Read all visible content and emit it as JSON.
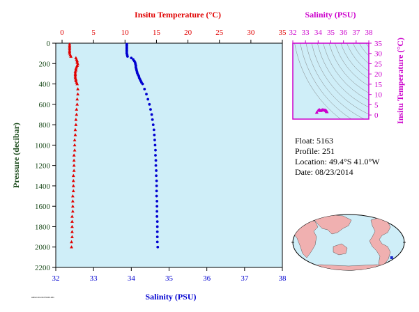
{
  "colors": {
    "temperature": "#e00000",
    "salinity": "#0000d0",
    "pressure": "#1a4a1a",
    "ts_diagram": "#cc00cc",
    "plot_background": "#cfeef8",
    "land": "#f0b0b0",
    "ocean": "#cfeef8"
  },
  "chart_data": [
    {
      "type": "scatter",
      "title": "",
      "x_axis_top": {
        "label": "Insitu Temperature (°C)",
        "range": [
          -1,
          35
        ],
        "ticks": [
          "0",
          "5",
          "10",
          "15",
          "20",
          "25",
          "30",
          "35"
        ]
      },
      "x_axis_bottom": {
        "label": "Salinity (PSU)",
        "range": [
          32,
          38
        ],
        "ticks": [
          "32",
          "33",
          "34",
          "35",
          "36",
          "37",
          "38"
        ]
      },
      "y_axis": {
        "label": "Pressure (decibar)",
        "range": [
          0,
          2200
        ],
        "inverted": true,
        "ticks": [
          "0",
          "200",
          "400",
          "600",
          "800",
          "1000",
          "1200",
          "1400",
          "1600",
          "1800",
          "2000",
          "2200"
        ]
      },
      "grid": false,
      "series": [
        {
          "name": "Insitu Temperature (°C)",
          "axis": "top",
          "marker": "triangle",
          "color": "#e00000",
          "points": [
            [
              1.2,
              10
            ],
            [
              1.2,
              25
            ],
            [
              1.2,
              40
            ],
            [
              1.2,
              55
            ],
            [
              1.2,
              70
            ],
            [
              1.2,
              85
            ],
            [
              1.2,
              100
            ],
            [
              1.3,
              115
            ],
            [
              1.4,
              130
            ],
            [
              2.2,
              145
            ],
            [
              2.3,
              160
            ],
            [
              2.4,
              175
            ],
            [
              2.4,
              190
            ],
            [
              2.5,
              205
            ],
            [
              2.4,
              220
            ],
            [
              2.3,
              235
            ],
            [
              2.2,
              250
            ],
            [
              2.2,
              265
            ],
            [
              2.1,
              280
            ],
            [
              2.1,
              295
            ],
            [
              2.1,
              310
            ],
            [
              2.1,
              325
            ],
            [
              2.1,
              340
            ],
            [
              2.2,
              355
            ],
            [
              2.2,
              370
            ],
            [
              2.3,
              385
            ],
            [
              2.4,
              400
            ],
            [
              2.5,
              450
            ],
            [
              2.5,
              500
            ],
            [
              2.4,
              550
            ],
            [
              2.4,
              600
            ],
            [
              2.3,
              650
            ],
            [
              2.3,
              700
            ],
            [
              2.2,
              750
            ],
            [
              2.2,
              800
            ],
            [
              2.1,
              850
            ],
            [
              2.1,
              900
            ],
            [
              2.0,
              950
            ],
            [
              2.0,
              1000
            ],
            [
              2.0,
              1050
            ],
            [
              1.9,
              1100
            ],
            [
              1.9,
              1150
            ],
            [
              1.9,
              1200
            ],
            [
              1.9,
              1250
            ],
            [
              1.8,
              1300
            ],
            [
              1.8,
              1350
            ],
            [
              1.8,
              1400
            ],
            [
              1.8,
              1450
            ],
            [
              1.7,
              1500
            ],
            [
              1.7,
              1550
            ],
            [
              1.7,
              1600
            ],
            [
              1.7,
              1650
            ],
            [
              1.6,
              1700
            ],
            [
              1.6,
              1750
            ],
            [
              1.6,
              1800
            ],
            [
              1.6,
              1850
            ],
            [
              1.6,
              1900
            ],
            [
              1.5,
              1950
            ],
            [
              1.5,
              2000
            ]
          ]
        },
        {
          "name": "Salinity (PSU)",
          "axis": "bottom",
          "marker": "circle",
          "color": "#0000d0",
          "points": [
            [
              33.88,
              10
            ],
            [
              33.88,
              25
            ],
            [
              33.88,
              40
            ],
            [
              33.88,
              55
            ],
            [
              33.88,
              70
            ],
            [
              33.88,
              85
            ],
            [
              33.88,
              100
            ],
            [
              33.89,
              115
            ],
            [
              33.9,
              130
            ],
            [
              34.0,
              145
            ],
            [
              34.05,
              160
            ],
            [
              34.08,
              175
            ],
            [
              34.1,
              190
            ],
            [
              34.11,
              205
            ],
            [
              34.12,
              220
            ],
            [
              34.12,
              235
            ],
            [
              34.13,
              250
            ],
            [
              34.14,
              265
            ],
            [
              34.15,
              280
            ],
            [
              34.16,
              295
            ],
            [
              34.18,
              310
            ],
            [
              34.2,
              325
            ],
            [
              34.21,
              340
            ],
            [
              34.23,
              355
            ],
            [
              34.25,
              370
            ],
            [
              34.27,
              385
            ],
            [
              34.3,
              400
            ],
            [
              34.35,
              450
            ],
            [
              34.4,
              500
            ],
            [
              34.44,
              550
            ],
            [
              34.48,
              600
            ],
            [
              34.51,
              650
            ],
            [
              34.54,
              700
            ],
            [
              34.56,
              750
            ],
            [
              34.58,
              800
            ],
            [
              34.6,
              850
            ],
            [
              34.61,
              900
            ],
            [
              34.62,
              950
            ],
            [
              34.63,
              1000
            ],
            [
              34.64,
              1050
            ],
            [
              34.64,
              1100
            ],
            [
              34.65,
              1150
            ],
            [
              34.65,
              1200
            ],
            [
              34.66,
              1250
            ],
            [
              34.66,
              1300
            ],
            [
              34.67,
              1350
            ],
            [
              34.67,
              1400
            ],
            [
              34.67,
              1450
            ],
            [
              34.67,
              1500
            ],
            [
              34.68,
              1550
            ],
            [
              34.68,
              1600
            ],
            [
              34.68,
              1650
            ],
            [
              34.68,
              1700
            ],
            [
              34.69,
              1750
            ],
            [
              34.69,
              1800
            ],
            [
              34.69,
              1850
            ],
            [
              34.69,
              1900
            ],
            [
              34.69,
              1950
            ],
            [
              34.7,
              2000
            ]
          ]
        }
      ]
    },
    {
      "type": "scatter",
      "title": "",
      "x_axis": {
        "label": "Salinity (PSU)",
        "range": [
          32,
          38
        ],
        "ticks": [
          "32",
          "33",
          "34",
          "35",
          "36",
          "37",
          "38"
        ]
      },
      "y_axis": {
        "label": "Insitu Temperature (°C)",
        "range": [
          -2,
          35
        ],
        "ticks": [
          "0",
          "5",
          "10",
          "15",
          "20",
          "25",
          "30",
          "35"
        ]
      },
      "density_contours": true,
      "series": [
        {
          "marker": "triangle",
          "color": "#cc00cc",
          "points": [
            [
              33.88,
              1.2
            ],
            [
              33.9,
              1.3
            ],
            [
              34.0,
              2.2
            ],
            [
              34.05,
              2.3
            ],
            [
              34.08,
              2.4
            ],
            [
              34.1,
              2.5
            ],
            [
              34.12,
              2.4
            ],
            [
              34.14,
              2.2
            ],
            [
              34.16,
              2.1
            ],
            [
              34.2,
              2.1
            ],
            [
              34.25,
              2.2
            ],
            [
              34.3,
              2.4
            ],
            [
              34.35,
              2.5
            ],
            [
              34.4,
              2.5
            ],
            [
              34.48,
              2.4
            ],
            [
              34.54,
              2.3
            ],
            [
              34.58,
              2.2
            ],
            [
              34.61,
              2.1
            ],
            [
              34.63,
              2.0
            ],
            [
              34.65,
              1.9
            ],
            [
              34.66,
              1.8
            ],
            [
              34.67,
              1.8
            ],
            [
              34.68,
              1.7
            ],
            [
              34.68,
              1.6
            ],
            [
              34.69,
              1.6
            ],
            [
              34.7,
              1.5
            ]
          ]
        }
      ]
    }
  ],
  "info": {
    "float": "Float:  5163",
    "profile": "Profile:  251",
    "location": "Location:  49.4°S  41.0°W",
    "date": "Date:  08/23/2014"
  },
  "map": {
    "marker_lat": -49.4,
    "marker_lon": -41.0,
    "marker_color": "#1a2ad0"
  },
  "footer_text": "ARGO-FLOAT-5163-251"
}
